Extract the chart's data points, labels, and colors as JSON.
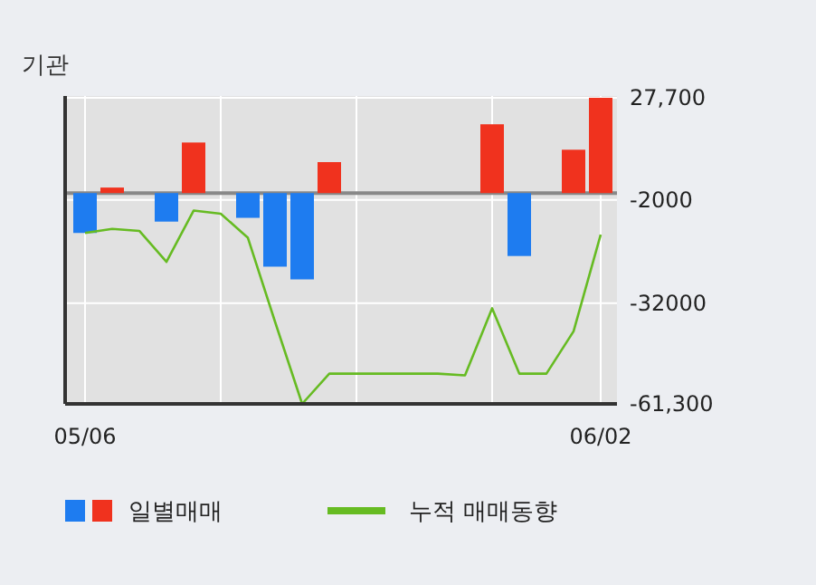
{
  "chart_data": {
    "type": "bar",
    "title": "기관",
    "categories": [
      "05/06",
      null,
      null,
      null,
      null,
      null,
      null,
      null,
      null,
      null,
      null,
      null,
      null,
      null,
      null,
      null,
      null,
      null,
      null,
      "06/02"
    ],
    "series": [
      {
        "name": "일별매매",
        "values": [
          -11600,
          1600,
          null,
          -8300,
          14700,
          null,
          -7200,
          -21400,
          -25100,
          9000,
          null,
          null,
          null,
          null,
          null,
          20000,
          -18300,
          null,
          12600,
          27700
        ],
        "colors": [
          "#1e7cf0",
          "#f0321e",
          null,
          "#1e7cf0",
          "#f0321e",
          null,
          "#1e7cf0",
          "#1e7cf0",
          "#1e7cf0",
          "#f0321e",
          null,
          null,
          null,
          null,
          null,
          "#f0321e",
          "#1e7cf0",
          null,
          "#f0321e",
          "#f0321e"
        ]
      },
      {
        "name": "누적 매매동향",
        "type": "line",
        "color": "#66bb22",
        "values": [
          -11600,
          -10400,
          -11000,
          -20000,
          -5100,
          -6000,
          -13000,
          -37400,
          -61300,
          -52500,
          -52500,
          -52500,
          -52500,
          -52500,
          -53000,
          -33500,
          -52500,
          -52500,
          -40200,
          -12100
        ]
      }
    ],
    "ylim": [
      -61300,
      27700
    ],
    "yticks": [
      {
        "value": 27700,
        "label": "27,700"
      },
      -2000,
      -32000,
      {
        "value": -61300,
        "label": "-61,300"
      }
    ],
    "grid": true,
    "legend": "bottom"
  }
}
